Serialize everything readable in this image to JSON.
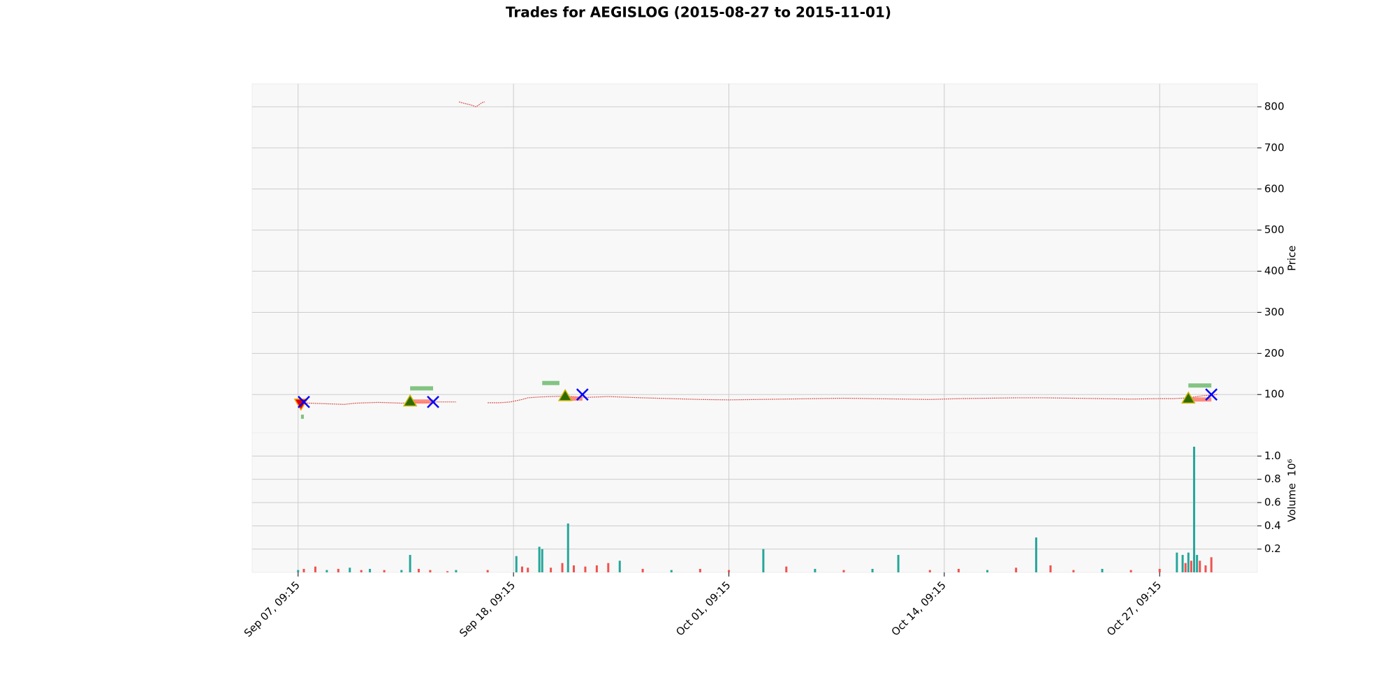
{
  "chart_data": [
    {
      "type": "line",
      "title": "Trades for AEGISLOG (2015-08-27 to 2015-11-01)",
      "ylabel": "Price",
      "xlim": [
        -16,
        334
      ],
      "xticks": [
        {
          "value": 0,
          "label": "Sep 07, 09:15"
        },
        {
          "value": 75,
          "label": "Sep 18, 09:15"
        },
        {
          "value": 150,
          "label": "Oct 01, 09:15"
        },
        {
          "value": 225,
          "label": "Oct 14, 09:15"
        },
        {
          "value": 300,
          "label": "Oct 27, 09:15"
        }
      ],
      "ylim": [
        7,
        856
      ],
      "yticks": [
        100,
        200,
        300,
        400,
        500,
        600,
        700,
        800
      ],
      "grid": true,
      "x": [
        0,
        4,
        8,
        12,
        16,
        20,
        24,
        28,
        32,
        36,
        40,
        44,
        48,
        52,
        55,
        55.5,
        56,
        58,
        60,
        62,
        64,
        65,
        65.5,
        66,
        70,
        74,
        78,
        80,
        84,
        88,
        92,
        96,
        100,
        104,
        108,
        112,
        120,
        130,
        140,
        150,
        160,
        170,
        180,
        190,
        200,
        210,
        220,
        230,
        240,
        250,
        260,
        270,
        280,
        290,
        300,
        305,
        310,
        315,
        320
      ],
      "series": [
        {
          "color": "#d9534f",
          "values": [
            80,
            79,
            78,
            77,
            76,
            79,
            80,
            81,
            80,
            79,
            80,
            81,
            82,
            82,
            82,
            null,
            812,
            808,
            805,
            800,
            810,
            812,
            null,
            80,
            80,
            82,
            88,
            92,
            94,
            95,
            96,
            95,
            93,
            94,
            95,
            94,
            92,
            90,
            88,
            87,
            88,
            89,
            90,
            91,
            90,
            89,
            88,
            90,
            91,
            92,
            92,
            91,
            90,
            89,
            90,
            90,
            92,
            97,
            100
          ]
        }
      ],
      "long_entries": {
        "x": [
          39,
          93,
          310
        ],
        "values": [
          83,
          96,
          90
        ],
        "color": "#2f6b00"
      },
      "short_entries": {
        "x": [
          1
        ],
        "values": [
          78
        ],
        "color": "#e00000"
      },
      "exits": {
        "x": [
          2,
          47,
          99,
          318
        ],
        "values": [
          82,
          82,
          100,
          100
        ],
        "color": "#0000ff"
      },
      "targets": {
        "x_start": [
          1,
          39,
          85,
          310
        ],
        "x_end": [
          2,
          47,
          91,
          318
        ],
        "values": [
          46,
          115,
          128,
          122
        ],
        "color": "#6dbb6d"
      },
      "stops": {
        "x_start": [
          39,
          93,
          310
        ],
        "x_end": [
          47,
          99,
          318
        ],
        "values": [
          83,
          90,
          88
        ],
        "color": "#ff7a6a"
      }
    },
    {
      "type": "bar",
      "ylabel": "Volume",
      "offset_label": "10⁶",
      "xlim": [
        -16,
        334
      ],
      "xticks": [
        {
          "value": 0,
          "label": "Sep 07, 09:15"
        },
        {
          "value": 75,
          "label": "Sep 18, 09:15"
        },
        {
          "value": 150,
          "label": "Oct 01, 09:15"
        },
        {
          "value": 225,
          "label": "Oct 14, 09:15"
        },
        {
          "value": 300,
          "label": "Oct 27, 09:15"
        }
      ],
      "ylim": [
        0,
        1.2
      ],
      "yticks": [
        0.2,
        0.4,
        0.6,
        0.8,
        {
          "value": 1,
          "label": "1.0"
        }
      ],
      "grid": true,
      "x": [
        0,
        2,
        6,
        10,
        14,
        18,
        22,
        25,
        30,
        36,
        39,
        42,
        46,
        52,
        55,
        66,
        76,
        78,
        80,
        84,
        85,
        88,
        92,
        94,
        96,
        100,
        104,
        108,
        112,
        120,
        130,
        140,
        150,
        162,
        170,
        180,
        190,
        200,
        209,
        220,
        230,
        240,
        250,
        257,
        262,
        270,
        280,
        290,
        300,
        306,
        308,
        309,
        310,
        311,
        312,
        313,
        314,
        316,
        318
      ],
      "values": [
        0.02,
        0.03,
        0.05,
        0.02,
        0.03,
        0.04,
        0.02,
        0.03,
        0.02,
        0.02,
        0.15,
        0.03,
        0.02,
        0.01,
        0.02,
        0.02,
        0.14,
        0.05,
        0.04,
        0.22,
        0.2,
        0.04,
        0.08,
        0.42,
        0.06,
        0.05,
        0.06,
        0.08,
        0.1,
        0.03,
        0.02,
        0.03,
        0.02,
        0.2,
        0.05,
        0.03,
        0.02,
        0.03,
        0.15,
        0.02,
        0.03,
        0.02,
        0.04,
        0.3,
        0.06,
        0.02,
        0.03,
        0.02,
        0.03,
        0.17,
        0.15,
        0.08,
        0.17,
        0.1,
        1.08,
        0.15,
        0.1,
        0.06,
        0.13
      ],
      "colors": [
        "#26a69a",
        "#ef5350",
        "#ef5350",
        "#26a69a",
        "#ef5350",
        "#26a69a",
        "#ef5350",
        "#26a69a",
        "#ef5350",
        "#26a69a",
        "#26a69a",
        "#ef5350",
        "#ef5350",
        "#ef5350",
        "#26a69a",
        "#ef5350",
        "#26a69a",
        "#ef5350",
        "#ef5350",
        "#26a69a",
        "#26a69a",
        "#ef5350",
        "#ef5350",
        "#26a69a",
        "#ef5350",
        "#ef5350",
        "#ef5350",
        "#ef5350",
        "#26a69a",
        "#ef5350",
        "#26a69a",
        "#ef5350",
        "#ef5350",
        "#26a69a",
        "#ef5350",
        "#26a69a",
        "#ef5350",
        "#26a69a",
        "#26a69a",
        "#ef5350",
        "#ef5350",
        "#26a69a",
        "#ef5350",
        "#26a69a",
        "#ef5350",
        "#ef5350",
        "#26a69a",
        "#ef5350",
        "#ef5350",
        "#26a69a",
        "#26a69a",
        "#ef5350",
        "#26a69a",
        "#ef5350",
        "#26a69a",
        "#26a69a",
        "#ef5350",
        "#ef5350",
        "#ef5350"
      ]
    }
  ]
}
